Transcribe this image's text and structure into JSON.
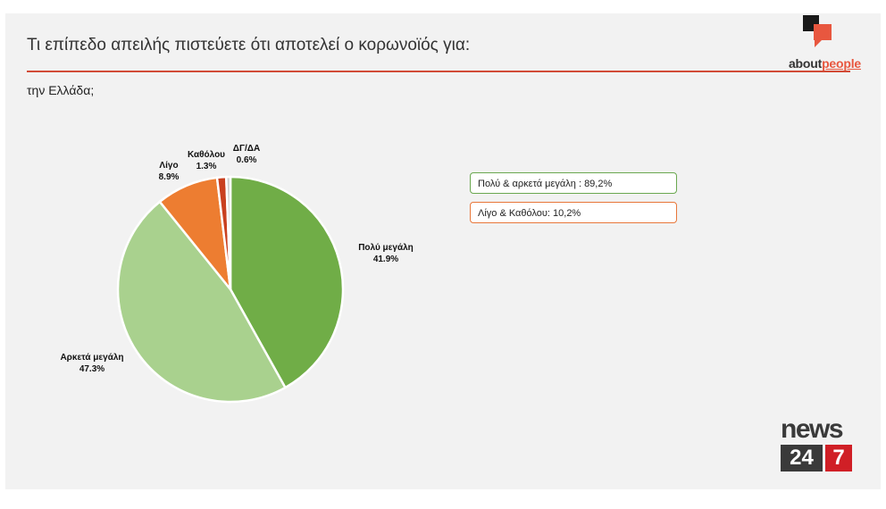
{
  "header": {
    "title": "Τι επίπεδο απειλής πιστεύετε ότι αποτελεί ο κορωνοϊός για:",
    "subtitle": "την Ελλάδα;"
  },
  "logos": {
    "aboutpeople_prefix": "about",
    "aboutpeople_suffix": "people",
    "news_word": "news",
    "news_num": "24",
    "news_seven": "7"
  },
  "summary_boxes": [
    {
      "text": "Πολύ & αρκετά μεγάλη : 89,2%",
      "color": "#6aa84f"
    },
    {
      "text": "Λίγο & Καθόλου: 10,2%",
      "color": "#e8773a"
    }
  ],
  "chart_data": {
    "type": "pie",
    "title": "",
    "slices": [
      {
        "label": "Πολύ μεγάλη",
        "value": 41.9,
        "display": "41.9%",
        "color": "#70ad47"
      },
      {
        "label": "Αρκετά μεγάλη",
        "value": 47.3,
        "display": "47.3%",
        "color": "#a9d18e"
      },
      {
        "label": "Λίγο",
        "value": 8.9,
        "display": "8.9%",
        "color": "#ed7d31"
      },
      {
        "label": "Καθόλου",
        "value": 1.3,
        "display": "1.3%",
        "color": "#c9401f"
      },
      {
        "label": "ΔΓ/ΔΑ",
        "value": 0.6,
        "display": "0.6%",
        "color": "#cfcfcf"
      }
    ]
  }
}
